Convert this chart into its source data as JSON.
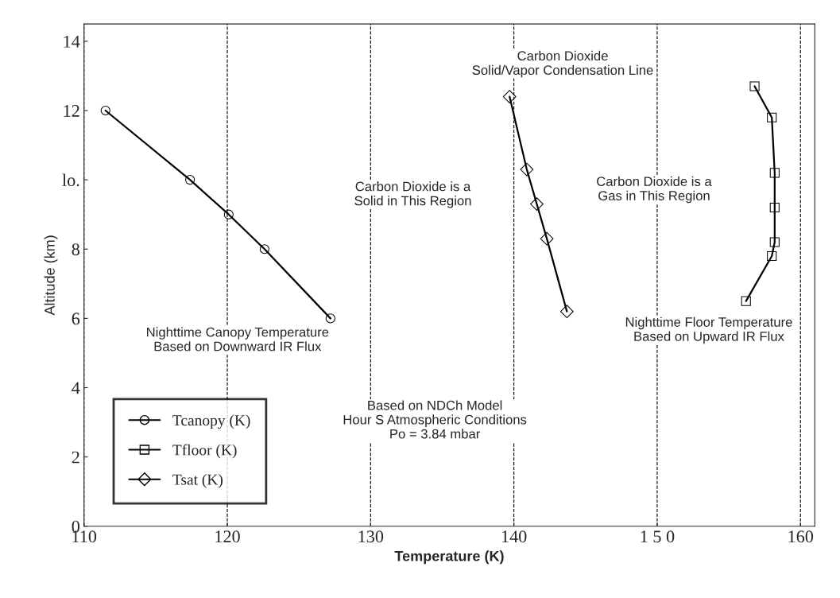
{
  "chart_data": {
    "type": "line",
    "xlabel": "Temperature (K)",
    "ylabel": "Altitude (km)",
    "xlim": [
      110,
      161
    ],
    "ylim": [
      0,
      14.5
    ],
    "xticks": [
      110,
      120,
      130,
      140,
      {
        "value": 150,
        "label": "1 5 0"
      },
      160
    ],
    "yticks": [
      0,
      2,
      4,
      6,
      8,
      {
        "value": 10,
        "label": "lo."
      },
      12,
      14
    ],
    "grid": "x",
    "legend": "bottom left",
    "series": [
      {
        "name": "Tcanopy (K)",
        "color": "#000000",
        "marker": "circle",
        "x": [
          111.5,
          117.4,
          120.1,
          122.6,
          127.2
        ],
        "values": [
          12,
          10,
          9,
          8,
          6
        ]
      },
      {
        "name": "Tfloor (K)",
        "color": "#000000",
        "marker": "square",
        "x": [
          156.8,
          158.0,
          158.2,
          158.2,
          158.2,
          158.0,
          156.2
        ],
        "values": [
          12.7,
          11.8,
          10.2,
          9.2,
          8.2,
          7.8,
          6.5
        ]
      },
      {
        "name": "Tsat (K)",
        "color": "#000000",
        "marker": "diamond",
        "x": [
          139.7,
          140.9,
          141.6,
          142.3,
          143.7
        ],
        "values": [
          12.4,
          10.3,
          9.3,
          8.3,
          6.2
        ]
      }
    ],
    "annotations": [
      "Carbon Dioxide\nSolid/Vapor Condensation Line",
      "Carbon Dioxide is a\nSolid in This Region",
      "Carbon Dioxide is a\nGas in This Region",
      "Nighttime Canopy Temperature\nBased on Downward IR Flux",
      "Nighttime Floor Temperature\nBased on Upward IR Flux",
      "Based on NDCh Model\nHour S Atmospheric Conditions\nPo = 3.84 mbar"
    ]
  }
}
